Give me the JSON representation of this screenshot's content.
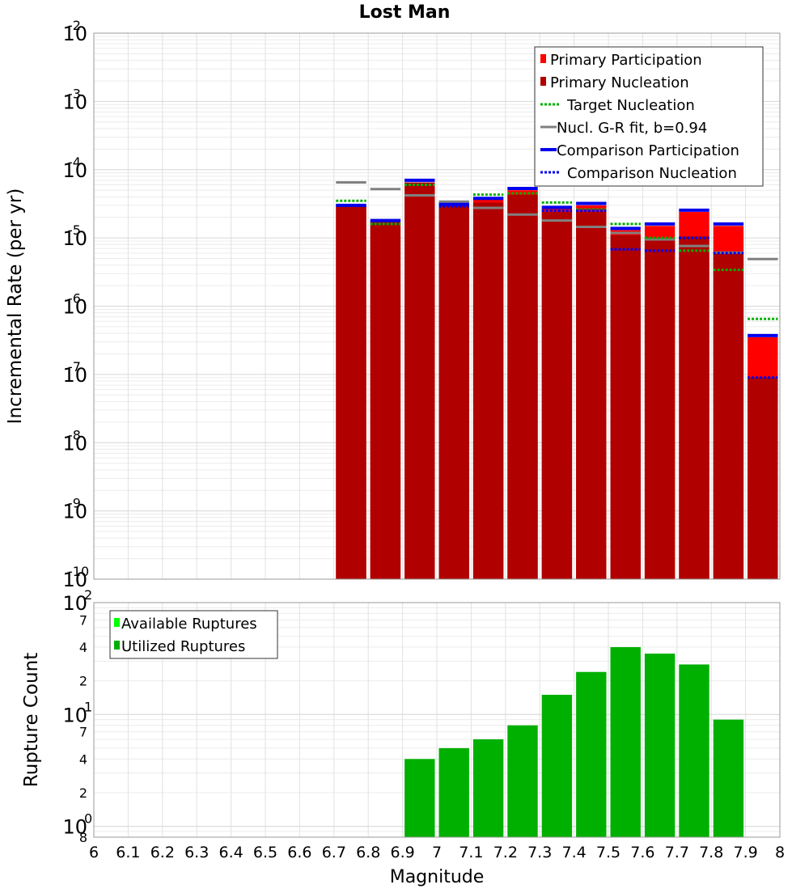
{
  "title": "Lost Man",
  "x_axis": {
    "label": "Magnitude",
    "ticks": [
      "6",
      "6.1",
      "6.2",
      "6.3",
      "6.4",
      "6.5",
      "6.6",
      "6.7",
      "6.8",
      "6.9",
      "7",
      "7.1",
      "7.2",
      "7.3",
      "7.4",
      "7.5",
      "7.6",
      "7.7",
      "7.8",
      "7.9",
      "8"
    ]
  },
  "colors": {
    "primary_participation": "#ff0000",
    "primary_nucleation": "#b00000",
    "target_nucleation": "#00b000",
    "gr_fit": "#808080",
    "comparison_participation": "#0000ee",
    "comparison_nucleation": "#0000ee",
    "comparison_nucleation_inner": "#000000",
    "available_ruptures": "#00ff00",
    "utilized_ruptures": "#00b000"
  },
  "chart_data": [
    {
      "type": "bar",
      "name": "rate-panel",
      "ylabel": "Incremental Rate (per yr)",
      "yscale": "log",
      "ylim": [
        1e-10,
        0.01
      ],
      "y_tick_exponents": [
        "-10",
        "-9",
        "-8",
        "-7",
        "-6",
        "-5",
        "-4",
        "-3",
        "-2"
      ],
      "xlim": [
        6.0,
        8.0
      ],
      "grid": true,
      "legend_position": "top-right",
      "legend": [
        {
          "label": "Primary Participation",
          "key": "primary_participation",
          "style": "box"
        },
        {
          "label": "Primary Nucleation",
          "key": "primary_nucleation",
          "style": "box"
        },
        {
          "label": "Target Nucleation",
          "key": "target_nucleation",
          "style": "dotted"
        },
        {
          "label": "Nucl. G-R fit, b=0.94",
          "key": "gr_fit",
          "style": "solid"
        },
        {
          "label": "Comparison Participation",
          "key": "comparison_participation",
          "style": "solid-thick"
        },
        {
          "label": "Comparison Nucleation",
          "key": "comparison_nucleation",
          "style": "dotted"
        }
      ],
      "bin_width": 0.1,
      "x": [
        6.75,
        6.85,
        6.95,
        7.05,
        7.15,
        7.25,
        7.35,
        7.45,
        7.55,
        7.65,
        7.75,
        7.85,
        7.95
      ],
      "series": [
        {
          "name": "Primary Participation",
          "values": [
            3e-05,
            1.75e-05,
            6.5e-05,
            3e-05,
            3.7e-05,
            5e-05,
            2.7e-05,
            3e-05,
            1.3e-05,
            1.5e-05,
            2.4e-05,
            1.5e-05,
            3.5e-07
          ]
        },
        {
          "name": "Primary Nucleation",
          "values": [
            3e-05,
            1.75e-05,
            6.5e-05,
            3e-05,
            3.3e-05,
            4.3e-05,
            2.4e-05,
            2.4e-05,
            1.1e-05,
            1e-05,
            1.05e-05,
            6e-06,
            9e-08
          ]
        },
        {
          "name": "Target Nucleation",
          "values": [
            3.5e-05,
            1.6e-05,
            6e-05,
            3e-05,
            4.3e-05,
            4.5e-05,
            3.3e-05,
            2.6e-05,
            1.6e-05,
            1e-05,
            6.5e-06,
            3.4e-06,
            6.5e-07
          ]
        },
        {
          "name": "Nucl. G-R fit, b=0.94",
          "values": [
            6.5e-05,
            5.2e-05,
            4.2e-05,
            3.4e-05,
            2.75e-05,
            2.2e-05,
            1.8e-05,
            1.45e-05,
            1.18e-05,
            9.5e-06,
            7.6e-06,
            6.1e-06,
            4.9e-06
          ]
        },
        {
          "name": "Comparison Participation",
          "values": [
            3e-05,
            1.8e-05,
            7e-05,
            3.1e-05,
            3.8e-05,
            5.3e-05,
            2.8e-05,
            3.2e-05,
            1.38e-05,
            1.6e-05,
            2.55e-05,
            1.6e-05,
            3.7e-07
          ]
        },
        {
          "name": "Comparison Nucleation",
          "values": [
            null,
            null,
            null,
            2.9e-05,
            null,
            null,
            2.5e-05,
            2.5e-05,
            6.8e-06,
            6.5e-06,
            1e-05,
            6e-06,
            9e-08
          ]
        }
      ]
    },
    {
      "type": "bar",
      "name": "count-panel",
      "ylabel": "Rupture Count",
      "yscale": "log",
      "ylim": [
        0.8,
        100
      ],
      "y_tick_labels": {
        "major": [
          {
            "v": 1,
            "t": "10",
            "e": "0"
          },
          {
            "v": 10,
            "t": "10",
            "e": "1"
          },
          {
            "v": 100,
            "t": "10",
            "e": "2"
          }
        ],
        "minor": [
          {
            "v": 0.8,
            "t": "8"
          },
          {
            "v": 2,
            "t": "2"
          },
          {
            "v": 4,
            "t": "4"
          },
          {
            "v": 7,
            "t": "7"
          },
          {
            "v": 20,
            "t": "2"
          },
          {
            "v": 40,
            "t": "4"
          },
          {
            "v": 70,
            "t": "7"
          }
        ]
      },
      "xlim": [
        6.0,
        8.0
      ],
      "grid": true,
      "legend_position": "top-left",
      "legend": [
        {
          "label": "Available Ruptures",
          "key": "available_ruptures",
          "style": "box"
        },
        {
          "label": "Utilized Ruptures",
          "key": "utilized_ruptures",
          "style": "box"
        }
      ],
      "bin_width": 0.1,
      "x": [
        6.95,
        7.05,
        7.15,
        7.25,
        7.35,
        7.45,
        7.55,
        7.65,
        7.75,
        7.85
      ],
      "series": [
        {
          "name": "Utilized Ruptures",
          "values": [
            4,
            5,
            6,
            8,
            15,
            24,
            40,
            35,
            28,
            9
          ]
        }
      ]
    }
  ]
}
